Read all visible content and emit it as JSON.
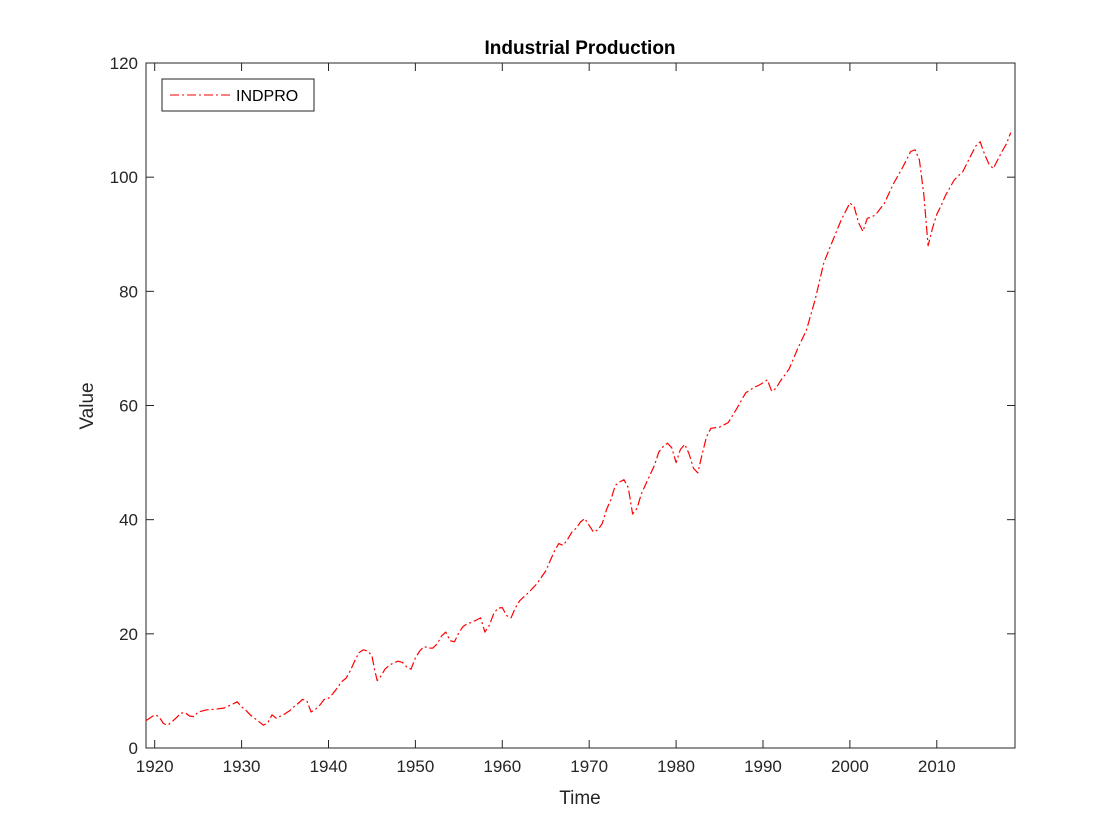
{
  "chart_data": {
    "type": "line",
    "title": "Industrial Production",
    "xlabel": "Time",
    "ylabel": "Value",
    "xlim": [
      1919,
      2019
    ],
    "ylim": [
      0,
      120
    ],
    "xticks": [
      1920,
      1930,
      1940,
      1950,
      1960,
      1970,
      1980,
      1990,
      2000,
      2010
    ],
    "xtick_labels": [
      "1920",
      "1930",
      "1940",
      "1950",
      "1960",
      "1970",
      "1980",
      "1990",
      "2000",
      "2010"
    ],
    "yticks": [
      0,
      20,
      40,
      60,
      80,
      100,
      120
    ],
    "ytick_labels": [
      "0",
      "20",
      "40",
      "60",
      "80",
      "100",
      "120"
    ],
    "grid": false,
    "legend": {
      "position": "top-left",
      "entries": [
        "INDPRO"
      ]
    },
    "series": [
      {
        "name": "INDPRO",
        "color": "#ff0000",
        "line_style": "dash-dot",
        "x": [
          1919.0,
          1919.5,
          1920.0,
          1920.5,
          1921.0,
          1921.5,
          1922.0,
          1922.5,
          1923.0,
          1923.5,
          1924.0,
          1924.5,
          1925.0,
          1925.5,
          1926.0,
          1927.0,
          1928.0,
          1929.0,
          1929.5,
          1930.0,
          1930.5,
          1931.0,
          1931.5,
          1932.0,
          1932.5,
          1933.0,
          1933.5,
          1934.0,
          1934.5,
          1935.0,
          1935.5,
          1936.0,
          1936.5,
          1937.0,
          1937.5,
          1938.0,
          1938.5,
          1939.0,
          1939.5,
          1940.0,
          1940.5,
          1941.0,
          1941.5,
          1942.0,
          1942.5,
          1943.0,
          1943.5,
          1944.0,
          1944.5,
          1945.0,
          1945.3,
          1945.6,
          1946.0,
          1946.5,
          1947.0,
          1947.5,
          1948.0,
          1948.5,
          1949.0,
          1949.5,
          1950.0,
          1950.5,
          1951.0,
          1951.5,
          1952.0,
          1952.5,
          1953.0,
          1953.5,
          1954.0,
          1954.5,
          1955.0,
          1955.5,
          1956.0,
          1956.5,
          1957.0,
          1957.5,
          1958.0,
          1958.5,
          1959.0,
          1959.5,
          1960.0,
          1960.5,
          1961.0,
          1961.5,
          1962.0,
          1963.0,
          1964.0,
          1965.0,
          1966.0,
          1966.5,
          1967.0,
          1967.5,
          1968.0,
          1968.5,
          1969.0,
          1969.5,
          1970.0,
          1970.5,
          1971.0,
          1971.5,
          1972.0,
          1972.5,
          1973.0,
          1973.5,
          1974.0,
          1974.5,
          1975.0,
          1975.5,
          1976.0,
          1976.5,
          1977.0,
          1977.5,
          1978.0,
          1978.5,
          1979.0,
          1979.5,
          1980.0,
          1980.5,
          1981.0,
          1981.5,
          1982.0,
          1982.5,
          1983.0,
          1983.5,
          1984.0,
          1985.0,
          1986.0,
          1987.0,
          1988.0,
          1989.0,
          1989.5,
          1990.0,
          1990.5,
          1991.0,
          1991.5,
          1992.0,
          1992.5,
          1993.0,
          1994.0,
          1995.0,
          1996.0,
          1997.0,
          1998.0,
          1999.0,
          2000.0,
          2000.5,
          2001.0,
          2001.5,
          2002.0,
          2002.5,
          2003.0,
          2003.5,
          2004.0,
          2005.0,
          2006.0,
          2007.0,
          2007.5,
          2008.0,
          2008.5,
          2009.0,
          2009.5,
          2010.0,
          2010.5,
          2011.0,
          2012.0,
          2013.0,
          2014.0,
          2014.5,
          2015.0,
          2015.5,
          2016.0,
          2016.5,
          2017.0,
          2017.5,
          2018.0,
          2018.5
        ],
        "values": [
          4.8,
          5.3,
          5.8,
          5.5,
          4.3,
          4.0,
          4.6,
          5.3,
          6.1,
          6.2,
          5.6,
          5.5,
          6.3,
          6.5,
          6.7,
          6.8,
          7.0,
          7.7,
          8.1,
          7.2,
          6.6,
          5.8,
          5.2,
          4.6,
          4.0,
          4.4,
          5.8,
          5.2,
          5.6,
          6.0,
          6.5,
          7.2,
          7.8,
          8.5,
          8.3,
          6.3,
          6.8,
          7.5,
          8.5,
          8.7,
          9.5,
          10.5,
          11.6,
          12.2,
          13.5,
          15.2,
          16.7,
          17.2,
          17.0,
          16.2,
          13.8,
          11.8,
          12.5,
          13.8,
          14.5,
          14.9,
          15.2,
          15.0,
          14.2,
          13.8,
          15.8,
          17.0,
          17.8,
          17.5,
          17.5,
          18.2,
          19.6,
          20.3,
          18.8,
          18.6,
          20.2,
          21.3,
          21.8,
          22.0,
          22.4,
          22.8,
          20.3,
          21.5,
          23.5,
          24.5,
          24.6,
          23.2,
          22.8,
          24.5,
          25.8,
          27.2,
          28.8,
          31.0,
          34.5,
          35.8,
          35.5,
          36.5,
          37.8,
          38.5,
          39.6,
          40.2,
          39.0,
          37.8,
          38.2,
          39.3,
          41.8,
          43.5,
          46.0,
          46.6,
          47.0,
          45.6,
          41.0,
          42.0,
          44.5,
          46.2,
          47.8,
          49.5,
          51.8,
          52.8,
          53.4,
          52.6,
          50.0,
          52.3,
          53.2,
          51.5,
          49.0,
          48.2,
          51.5,
          54.5,
          56.0,
          56.2,
          57.0,
          59.5,
          62.2,
          63.2,
          63.5,
          64.0,
          64.5,
          62.5,
          63.0,
          64.3,
          65.3,
          66.4,
          70.0,
          73.2,
          78.5,
          85.0,
          88.8,
          92.5,
          95.5,
          94.8,
          92.0,
          90.5,
          92.8,
          93.0,
          93.5,
          94.5,
          95.5,
          98.8,
          101.5,
          104.5,
          104.8,
          103.0,
          97.0,
          88.0,
          91.0,
          93.5,
          95.0,
          96.8,
          99.5,
          101.0,
          104.0,
          105.5,
          106.2,
          104.0,
          102.3,
          101.5,
          103.0,
          104.5,
          105.8,
          107.8
        ]
      }
    ]
  }
}
